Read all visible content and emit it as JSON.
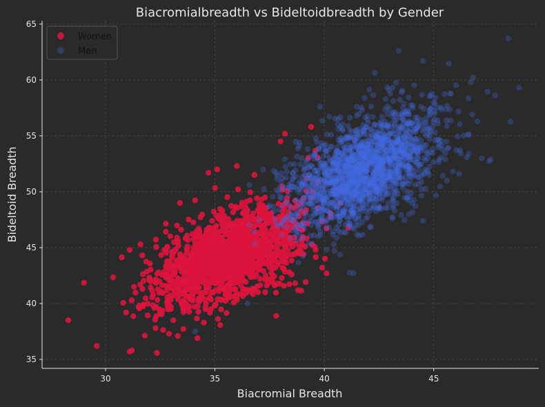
{
  "chart_data": {
    "type": "scatter",
    "title": "Biacromialbreadth vs Bideltoidbreadth by Gender",
    "xlabel": "Biacromial Breadth",
    "ylabel": "Bideltoid Breadth",
    "xlim": [
      27.1,
      49.8
    ],
    "ylim": [
      34.2,
      65.3
    ],
    "xticks": [
      30,
      35,
      40,
      45
    ],
    "yticks": [
      35,
      40,
      45,
      50,
      55,
      60,
      65
    ],
    "grid": true,
    "legend_position": "top-left",
    "series": [
      {
        "name": "Women",
        "color": "#dc143c",
        "opacity": 0.9,
        "cluster": {
          "n": 1500,
          "mean_x": 35.6,
          "mean_y": 44.2,
          "sd_x": 1.65,
          "sd_y": 2.4,
          "corr": 0.55
        },
        "points": [
          [
            28.3,
            38.5
          ],
          [
            29.6,
            36.2
          ],
          [
            31.1,
            35.7
          ],
          [
            31.2,
            35.8
          ],
          [
            31.1,
            44.8
          ],
          [
            31.6,
            45.3
          ],
          [
            31.3,
            41.5
          ],
          [
            32.3,
            45.7
          ],
          [
            33.4,
            49.0
          ],
          [
            34.7,
            51.7
          ],
          [
            35.1,
            52.0
          ],
          [
            36.0,
            52.3
          ],
          [
            38.0,
            54.5
          ],
          [
            38.2,
            55.2
          ],
          [
            39.4,
            55.8
          ],
          [
            39.6,
            53.7
          ],
          [
            40.1,
            46.7
          ],
          [
            40.1,
            42.7
          ],
          [
            39.9,
            43.2
          ],
          [
            38.8,
            41.2
          ],
          [
            33.1,
            38.5
          ],
          [
            34.2,
            36.9
          ],
          [
            32.9,
            37.3
          ],
          [
            33.3,
            37.1
          ],
          [
            37.8,
            38.9
          ]
        ]
      },
      {
        "name": "Men",
        "color": "#4169e1",
        "opacity": 0.3,
        "cluster": {
          "n": 2000,
          "mean_x": 41.8,
          "mean_y": 52.0,
          "sd_x": 1.7,
          "sd_y": 2.6,
          "corr": 0.55
        },
        "points": [
          [
            48.4,
            63.7
          ],
          [
            43.4,
            62.6
          ],
          [
            44.5,
            61.7
          ],
          [
            48.9,
            59.3
          ],
          [
            46.7,
            59.8
          ],
          [
            47.8,
            58.6
          ],
          [
            39.8,
            57.6
          ],
          [
            34.1,
            37.5
          ],
          [
            36.5,
            40.0
          ],
          [
            44.5,
            47.4
          ],
          [
            45.6,
            51.0
          ],
          [
            47.2,
            53.0
          ]
        ]
      }
    ]
  }
}
